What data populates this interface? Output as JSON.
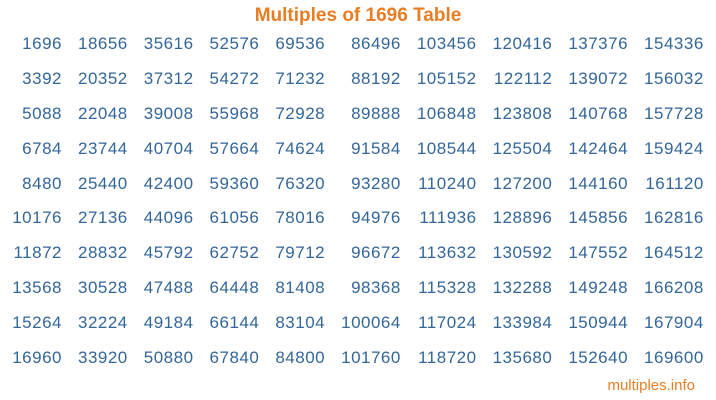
{
  "title": "Multiples of 1696 Table",
  "colors": {
    "background": "#ffffff",
    "title": "#e87d23",
    "number": "#336699",
    "link": "#e87d23"
  },
  "table": {
    "rows": [
      [
        "1696",
        "18656",
        "35616",
        "52576",
        "69536",
        "86496",
        "103456",
        "120416",
        "137376",
        "154336"
      ],
      [
        "3392",
        "20352",
        "37312",
        "54272",
        "71232",
        "88192",
        "105152",
        "122112",
        "139072",
        "156032"
      ],
      [
        "5088",
        "22048",
        "39008",
        "55968",
        "72928",
        "89888",
        "106848",
        "123808",
        "140768",
        "157728"
      ],
      [
        "6784",
        "23744",
        "40704",
        "57664",
        "74624",
        "91584",
        "108544",
        "125504",
        "142464",
        "159424"
      ],
      [
        "8480",
        "25440",
        "42400",
        "59360",
        "76320",
        "93280",
        "110240",
        "127200",
        "144160",
        "161120"
      ],
      [
        "10176",
        "27136",
        "44096",
        "61056",
        "78016",
        "94976",
        "111936",
        "128896",
        "145856",
        "162816"
      ],
      [
        "11872",
        "28832",
        "45792",
        "62752",
        "79712",
        "96672",
        "113632",
        "130592",
        "147552",
        "164512"
      ],
      [
        "13568",
        "30528",
        "47488",
        "64448",
        "81408",
        "98368",
        "115328",
        "132288",
        "149248",
        "166208"
      ],
      [
        "15264",
        "32224",
        "49184",
        "66144",
        "83104",
        "100064",
        "117024",
        "133984",
        "150944",
        "167904"
      ],
      [
        "16960",
        "33920",
        "50880",
        "67840",
        "84800",
        "101760",
        "118720",
        "135680",
        "152640",
        "169600"
      ]
    ]
  },
  "footer": {
    "link_label": "multiples.info"
  }
}
